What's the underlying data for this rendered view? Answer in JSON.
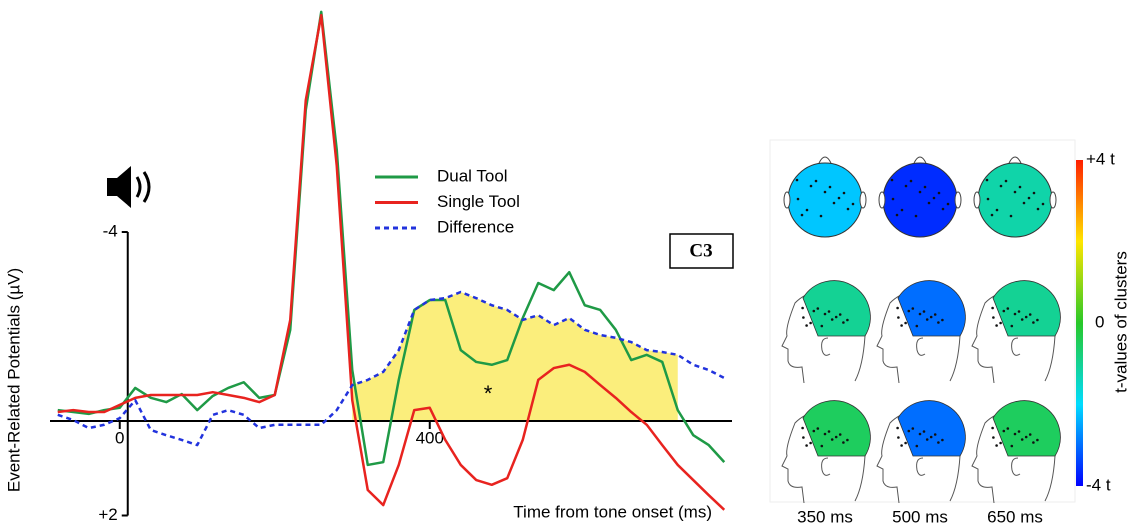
{
  "chart_data": [
    {
      "type": "line",
      "x_label": "Time from tone onset (ms)",
      "y_label": "Event-Related Potentials (µV)",
      "x": [
        -80,
        -60,
        -40,
        -20,
        0,
        20,
        40,
        60,
        80,
        100,
        120,
        140,
        160,
        180,
        200,
        220,
        240,
        260,
        280,
        300,
        320,
        340,
        360,
        380,
        400,
        420,
        440,
        460,
        480,
        500,
        520,
        540,
        560,
        580,
        600,
        620,
        640,
        660,
        680,
        700,
        720,
        740,
        760,
        780
      ],
      "series": [
        {
          "name": "Dual Tool",
          "color": "#1f9a46",
          "values": [
            -0.23,
            -0.19,
            -0.15,
            -0.23,
            -0.28,
            -0.7,
            -0.49,
            -0.4,
            -0.57,
            -0.23,
            -0.53,
            -0.7,
            -0.82,
            -0.49,
            -0.55,
            -1.93,
            -6.58,
            -8.66,
            -5.74,
            -1.08,
            0.93,
            0.87,
            -0.87,
            -2.35,
            -2.56,
            -2.56,
            -1.5,
            -1.25,
            -1.19,
            -1.29,
            -2.18,
            -2.92,
            -2.77,
            -3.15,
            -2.45,
            -2.35,
            -1.93,
            -1.29,
            -1.4,
            -1.25,
            -0.23,
            0.3,
            0.51,
            0.87
          ]
        },
        {
          "name": "Single Tool",
          "color": "#e8231f",
          "values": [
            -0.19,
            -0.23,
            -0.19,
            -0.19,
            -0.34,
            -0.49,
            -0.55,
            -0.55,
            -0.55,
            -0.55,
            -0.61,
            -0.55,
            -0.49,
            -0.4,
            -0.55,
            -2.14,
            -6.79,
            -8.59,
            -5.4,
            -0.44,
            1.46,
            1.78,
            0.93,
            -0.23,
            -0.28,
            0.4,
            0.93,
            1.25,
            1.35,
            1.21,
            0.4,
            -0.87,
            -1.12,
            -1.19,
            -1.04,
            -0.76,
            -0.49,
            -0.19,
            0.08,
            0.51,
            0.93,
            1.25,
            1.57,
            1.88
          ]
        },
        {
          "name": "Difference",
          "color": "#2233dd",
          "dashed": true,
          "values": [
            -0.13,
            -0.02,
            0.15,
            0.08,
            -0.06,
            -0.44,
            0.19,
            0.3,
            0.4,
            0.51,
            -0.13,
            -0.23,
            -0.13,
            0.15,
            0.08,
            0.08,
            0.08,
            0.08,
            -0.23,
            -0.76,
            -0.87,
            -1.04,
            -1.5,
            -2.35,
            -2.56,
            -2.6,
            -2.73,
            -2.6,
            -2.45,
            -2.35,
            -2.14,
            -2.24,
            -2.03,
            -2.18,
            -1.93,
            -1.82,
            -1.76,
            -1.67,
            -1.5,
            -1.46,
            -1.4,
            -1.19,
            -1.08,
            -0.91
          ]
        }
      ],
      "shaded_range": [
        300,
        720
      ],
      "shade_color": "#fbee7c",
      "xlim": [
        -90,
        790
      ],
      "ylim": [
        2,
        -8.9
      ],
      "xticks": [
        0,
        400
      ],
      "yticks": [
        -4,
        {
          "value": 2,
          "label": "+2"
        }
      ],
      "electrode_label": "C3",
      "annotation": "*"
    },
    {
      "type": "topomap",
      "categories": [
        "350 ms",
        "500 ms",
        "650 ms"
      ],
      "values": [
        [
          -2.2,
          -3.6,
          -1.2
        ],
        [
          -1.0,
          -3.0,
          -1.0
        ],
        [
          -0.5,
          -3.0,
          -0.5
        ]
      ],
      "colorbar_label": "t-values of clusters",
      "clim": [
        -4,
        4
      ],
      "colorbar_ticks": [
        {
          "value": 4,
          "label": "+4 t"
        },
        0,
        {
          "value": -4,
          "label": "-4 t"
        }
      ]
    }
  ]
}
